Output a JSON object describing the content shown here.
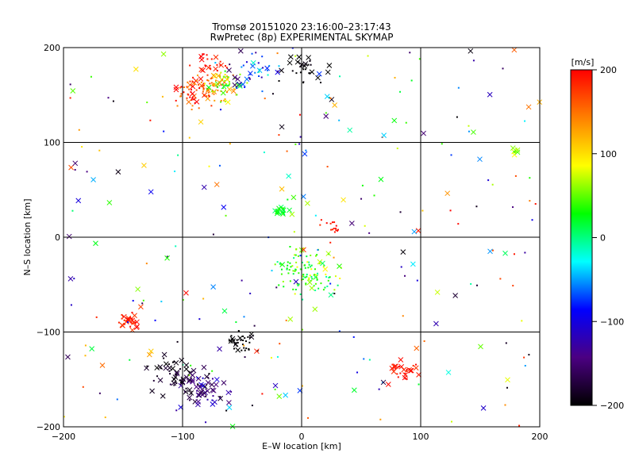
{
  "chart_data": {
    "type": "scatter",
    "title": "Tromsø 20151020 23:16:00–23:17:43",
    "subtitle": "RwPretec (8p) EXPERIMENTAL SKYMAP",
    "xlabel": "E–W location [km]",
    "ylabel": "N–S location [km]",
    "xlim": [
      -200,
      200
    ],
    "ylim": [
      -200,
      200
    ],
    "xticks": [
      -200,
      -100,
      0,
      100,
      200
    ],
    "yticks": [
      -200,
      -100,
      0,
      100,
      200
    ],
    "xtick_labels": [
      "−200",
      "−100",
      "0",
      "100",
      "200"
    ],
    "ytick_labels": [
      "−200",
      "−100",
      "0",
      "100",
      "200"
    ],
    "grid": true,
    "colorbar": {
      "label": "[m/s]",
      "range": [
        -200,
        200
      ],
      "ticks": [
        200,
        100,
        0,
        -100,
        -200
      ],
      "tick_labels": [
        "200",
        "100",
        "0",
        "−100",
        "−200"
      ],
      "colors": [
        "#000000",
        "#4b0082",
        "#0000ff",
        "#00ffff",
        "#00ff00",
        "#ffff00",
        "#ff8000",
        "#ff0000"
      ]
    },
    "clusters": [
      {
        "cx": -85,
        "cy": 155,
        "r": 16,
        "n": 90,
        "vel": 170,
        "spread": 40,
        "cross": 0.25
      },
      {
        "cx": -65,
        "cy": 160,
        "r": 14,
        "n": 70,
        "vel": 80,
        "spread": 70,
        "cross": 0.25
      },
      {
        "cx": -40,
        "cy": 175,
        "r": 18,
        "n": 40,
        "vel": -80,
        "spread": 90,
        "cross": 0.3
      },
      {
        "cx": -75,
        "cy": 185,
        "r": 12,
        "n": 25,
        "vel": 200,
        "spread": 20,
        "cross": 0.4
      },
      {
        "cx": 0,
        "cy": 175,
        "r": 18,
        "n": 30,
        "vel": -200,
        "spread": 10,
        "cross": 0.35
      },
      {
        "cx": 5,
        "cy": -35,
        "r": 22,
        "n": 120,
        "vel": 40,
        "spread": 50,
        "cross": 0.1
      },
      {
        "cx": -17,
        "cy": 28,
        "r": 5,
        "n": 20,
        "vel": 20,
        "spread": 20,
        "cross": 0.3
      },
      {
        "cx": -85,
        "cy": -160,
        "r": 20,
        "n": 70,
        "vel": -150,
        "spread": 50,
        "cross": 0.6
      },
      {
        "cx": -110,
        "cy": -145,
        "r": 18,
        "n": 40,
        "vel": -190,
        "spread": 15,
        "cross": 0.5
      },
      {
        "cx": -145,
        "cy": -90,
        "r": 8,
        "n": 30,
        "vel": 190,
        "spread": 20,
        "cross": 0.5
      },
      {
        "cx": 85,
        "cy": -140,
        "r": 12,
        "n": 30,
        "vel": 190,
        "spread": 15,
        "cross": 0.6
      },
      {
        "cx": -50,
        "cy": -110,
        "r": 10,
        "n": 35,
        "vel": -200,
        "spread": 10,
        "cross": 0.2
      },
      {
        "cx": 0,
        "cy": 0,
        "r": 200,
        "n": 260,
        "vel": 0,
        "spread": 200,
        "cross": 0.3
      },
      {
        "cx": 180,
        "cy": 90,
        "r": 4,
        "n": 10,
        "vel": 60,
        "spread": 30,
        "cross": 0.6
      },
      {
        "cx": 25,
        "cy": 10,
        "r": 8,
        "n": 15,
        "vel": 190,
        "spread": 15,
        "cross": 0.1
      }
    ]
  }
}
